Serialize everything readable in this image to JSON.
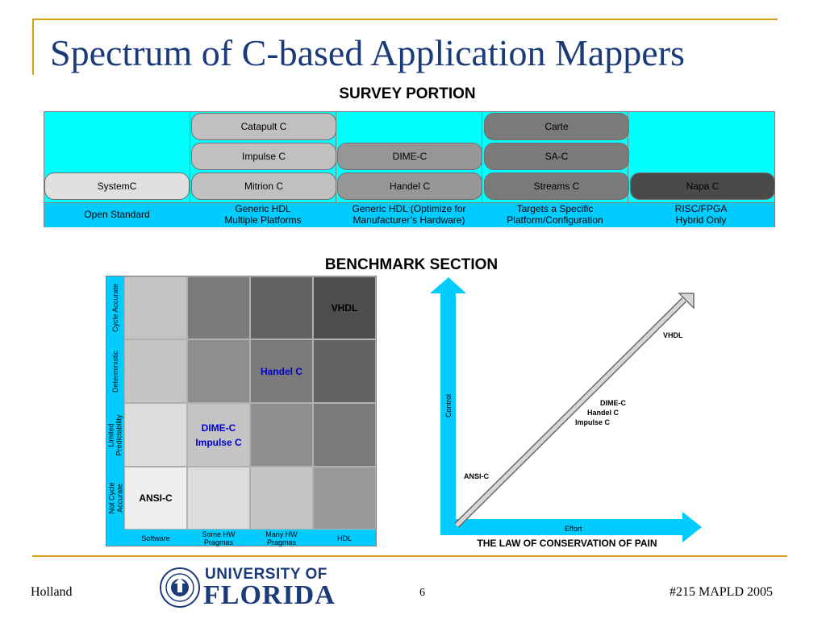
{
  "slide": {
    "title": "Spectrum of C-based Application Mappers",
    "page_number": "6",
    "footer_left": "Holland",
    "footer_right": "#215 MAPLD 2005",
    "logo": {
      "line1": "UNIVERSITY OF",
      "line2": "FLORIDA",
      "seal_icon": "university-seal-icon"
    }
  },
  "survey": {
    "title": "SURVEY PORTION",
    "pills": [
      {
        "label": "Catapult C",
        "shade": "c2"
      },
      {
        "label": "Carte",
        "shade": "c4"
      },
      {
        "label": "Impulse C",
        "shade": "c2"
      },
      {
        "label": "DIME-C",
        "shade": "c3"
      },
      {
        "label": "SA-C",
        "shade": "c4"
      },
      {
        "label": "SystemC",
        "shade": "c1"
      },
      {
        "label": "Mitrion C",
        "shade": "c2"
      },
      {
        "label": "Handel C",
        "shade": "c3"
      },
      {
        "label": "Streams C",
        "shade": "c4"
      },
      {
        "label": "Napa C",
        "shade": "c5"
      }
    ],
    "categories": [
      {
        "line1": "Open Standard",
        "line2": ""
      },
      {
        "line1": "Generic HDL",
        "line2": "Multiple Platforms"
      },
      {
        "line1": "Generic HDL (Optimize for",
        "line2": "Manufacturer’s Hardware)"
      },
      {
        "line1": "Targets a Specific",
        "line2": "Platform/Configuration"
      },
      {
        "line1": "RISC/FPGA",
        "line2": "Hybrid Only"
      }
    ],
    "colors": {
      "body": "#00ffff",
      "footer": "#00ccff"
    }
  },
  "benchmark": {
    "title": "BENCHMARK SECTION",
    "rows": [
      {
        "label": "Cycle Accurate",
        "label_line2": ""
      },
      {
        "label": "Deterministic",
        "label_line2": ""
      },
      {
        "label": "Limited",
        "label_line2": "Predictability"
      },
      {
        "label": "Not Cycle",
        "label_line2": "Accurate"
      }
    ],
    "columns": [
      {
        "line1": "Software",
        "line2": ""
      },
      {
        "line1": "Some HW",
        "line2": "Pragmas"
      },
      {
        "line1": "Many HW",
        "line2": "Pragmas"
      },
      {
        "line1": "HDL",
        "line2": ""
      }
    ],
    "cells": [
      [
        {
          "color": "#c4c4c4",
          "line1": "",
          "line2": "",
          "text_color": "#000"
        },
        {
          "color": "#7a7a7a",
          "line1": "",
          "line2": "",
          "text_color": "#000"
        },
        {
          "color": "#636363",
          "line1": "",
          "line2": "",
          "text_color": "#000"
        },
        {
          "color": "#4d4d4d",
          "line1": "VHDL",
          "line2": "",
          "text_color": "#000000"
        }
      ],
      [
        {
          "color": "#c4c4c4",
          "line1": "",
          "line2": "",
          "text_color": "#000"
        },
        {
          "color": "#8e8e8e",
          "line1": "",
          "line2": "",
          "text_color": "#000"
        },
        {
          "color": "#7a7a7a",
          "line1": "Handel C",
          "line2": "",
          "text_color": "#0000cc"
        },
        {
          "color": "#636363",
          "line1": "",
          "line2": "",
          "text_color": "#000"
        }
      ],
      [
        {
          "color": "#dcdcdc",
          "line1": "",
          "line2": "",
          "text_color": "#000"
        },
        {
          "color": "#c4c4c4",
          "line1": "DIME-C",
          "line2": "Impulse C",
          "text_color": "#0000cc"
        },
        {
          "color": "#8e8e8e",
          "line1": "",
          "line2": "",
          "text_color": "#000"
        },
        {
          "color": "#7a7a7a",
          "line1": "",
          "line2": "",
          "text_color": "#000"
        }
      ],
      [
        {
          "color": "#efefef",
          "line1": "ANSI-C",
          "line2": "",
          "text_color": "#000000"
        },
        {
          "color": "#dcdcdc",
          "line1": "",
          "line2": "",
          "text_color": "#000"
        },
        {
          "color": "#c4c4c4",
          "line1": "",
          "line2": "",
          "text_color": "#000"
        },
        {
          "color": "#9a9a9a",
          "line1": "",
          "line2": "",
          "text_color": "#000"
        }
      ]
    ]
  },
  "law_chart": {
    "caption": "THE LAW OF CONSERVATION OF PAIN",
    "y_axis_label": "Control",
    "x_axis_label": "Effort",
    "axis_color": "#00ccff",
    "annotations": [
      {
        "label": "VHDL"
      },
      {
        "label": "DIME-C"
      },
      {
        "label": "Handel C"
      },
      {
        "label": "Impulse C"
      },
      {
        "label": "ANSI-C"
      }
    ]
  }
}
